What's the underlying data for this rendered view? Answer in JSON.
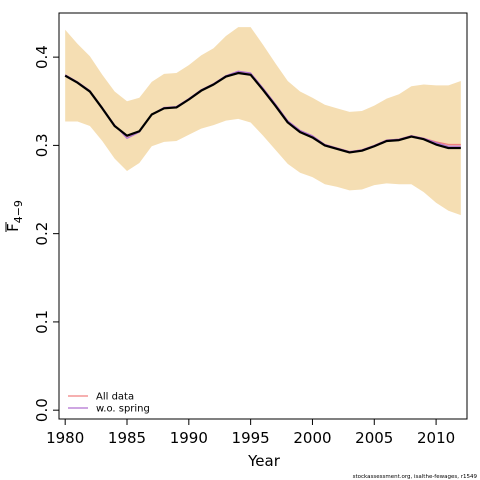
{
  "chart_data": {
    "type": "line",
    "xlabel": "Year",
    "ylabel_main": "F",
    "ylabel_sub": "4−9",
    "credit": "stockassessment.org, isalthe-fewages, r1549",
    "xlim": [
      1979.5,
      2012.5
    ],
    "ylim": [
      -0.01,
      0.45
    ],
    "x_ticks": [
      1980,
      1985,
      1990,
      1995,
      2000,
      2005,
      2010
    ],
    "y_ticks": [
      0.0,
      0.1,
      0.2,
      0.3,
      0.4
    ],
    "y_tick_labels": [
      "0.0",
      "0.1",
      "0.2",
      "0.3",
      "0.4"
    ],
    "x": [
      1980,
      1981,
      1982,
      1983,
      1984,
      1985,
      1986,
      1987,
      1988,
      1989,
      1990,
      1991,
      1992,
      1993,
      1994,
      1995,
      1996,
      1997,
      1998,
      1999,
      2000,
      2001,
      2002,
      2003,
      2004,
      2005,
      2006,
      2007,
      2008,
      2009,
      2010,
      2011,
      2012
    ],
    "band": {
      "color": "#F5DEB3",
      "upper": [
        0.431,
        0.415,
        0.401,
        0.38,
        0.361,
        0.35,
        0.354,
        0.372,
        0.381,
        0.382,
        0.391,
        0.402,
        0.41,
        0.424,
        0.434,
        0.434,
        0.414,
        0.393,
        0.373,
        0.361,
        0.354,
        0.346,
        0.342,
        0.338,
        0.339,
        0.345,
        0.353,
        0.358,
        0.367,
        0.369,
        0.368,
        0.368,
        0.373
      ],
      "lower": [
        0.327,
        0.327,
        0.322,
        0.305,
        0.285,
        0.271,
        0.28,
        0.299,
        0.304,
        0.305,
        0.312,
        0.319,
        0.323,
        0.328,
        0.33,
        0.326,
        0.311,
        0.295,
        0.279,
        0.269,
        0.264,
        0.256,
        0.253,
        0.249,
        0.25,
        0.255,
        0.257,
        0.256,
        0.256,
        0.247,
        0.235,
        0.226,
        0.221
      ]
    },
    "series": [
      {
        "name": "All data",
        "color": "#F08080",
        "values": [
          0.379,
          0.371,
          0.361,
          0.342,
          0.322,
          0.31,
          0.316,
          0.335,
          0.342,
          0.343,
          0.352,
          0.362,
          0.369,
          0.378,
          0.383,
          0.381,
          0.364,
          0.346,
          0.327,
          0.316,
          0.31,
          0.301,
          0.297,
          0.293,
          0.295,
          0.3,
          0.306,
          0.307,
          0.311,
          0.308,
          0.304,
          0.301,
          0.301
        ]
      },
      {
        "name": "w.o. spring",
        "color": "#B070D0",
        "values": [
          0.38,
          0.372,
          0.362,
          0.343,
          0.323,
          0.308,
          0.315,
          0.335,
          0.343,
          0.344,
          0.353,
          0.363,
          0.37,
          0.379,
          0.384,
          0.382,
          0.365,
          0.347,
          0.328,
          0.317,
          0.311,
          0.301,
          0.297,
          0.293,
          0.295,
          0.3,
          0.306,
          0.307,
          0.311,
          0.308,
          0.303,
          0.299,
          0.299
        ]
      },
      {
        "color": "#000000",
        "values": [
          0.379,
          0.371,
          0.361,
          0.342,
          0.322,
          0.311,
          0.316,
          0.335,
          0.342,
          0.343,
          0.352,
          0.362,
          0.369,
          0.378,
          0.382,
          0.38,
          0.363,
          0.345,
          0.326,
          0.315,
          0.309,
          0.3,
          0.296,
          0.292,
          0.294,
          0.299,
          0.305,
          0.306,
          0.31,
          0.307,
          0.301,
          0.297,
          0.297
        ]
      }
    ],
    "legend_position": "bottom-left"
  }
}
